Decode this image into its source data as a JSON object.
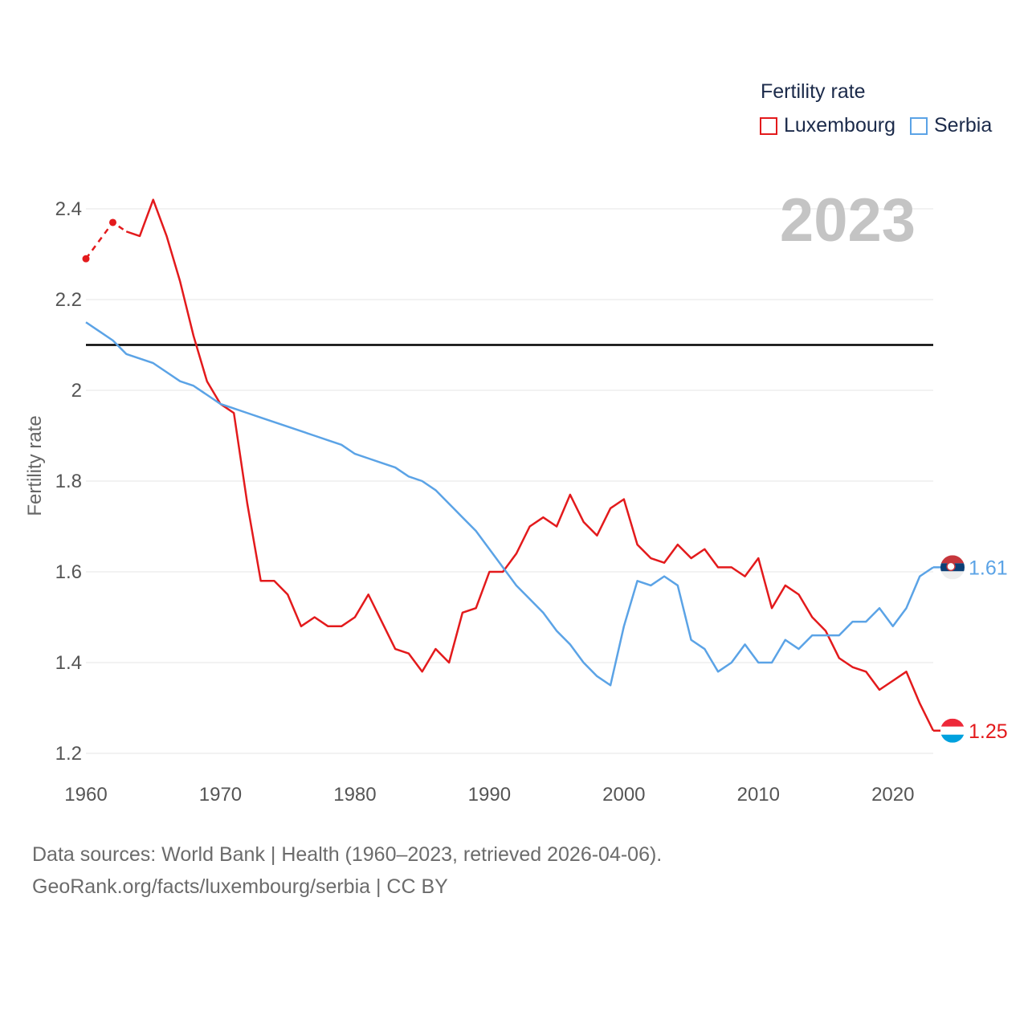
{
  "chart_data": {
    "type": "line",
    "legend_title": "Fertility rate",
    "ylabel": "Fertility rate",
    "xlabel": "",
    "year_label": "2023",
    "xlim": [
      1960,
      2023
    ],
    "ylim": [
      1.2,
      2.45
    ],
    "x_ticks": [
      1960,
      1970,
      1980,
      1990,
      2000,
      2010,
      2020
    ],
    "y_ticks": [
      1.2,
      1.4,
      1.6,
      1.8,
      2,
      2.2,
      2.4
    ],
    "y_tick_labels": [
      "1.2",
      "1.4",
      "1.6",
      "1.8",
      "2",
      "2.2",
      "2.4"
    ],
    "reference_line": 2.1,
    "x": [
      1960,
      1961,
      1962,
      1963,
      1964,
      1965,
      1966,
      1967,
      1968,
      1969,
      1970,
      1971,
      1972,
      1973,
      1974,
      1975,
      1976,
      1977,
      1978,
      1979,
      1980,
      1981,
      1982,
      1983,
      1984,
      1985,
      1986,
      1987,
      1988,
      1989,
      1990,
      1991,
      1992,
      1993,
      1994,
      1995,
      1996,
      1997,
      1998,
      1999,
      2000,
      2001,
      2002,
      2003,
      2004,
      2005,
      2006,
      2007,
      2008,
      2009,
      2010,
      2011,
      2012,
      2013,
      2014,
      2015,
      2016,
      2017,
      2018,
      2019,
      2020,
      2021,
      2022,
      2023
    ],
    "series": [
      {
        "name": "Luxembourg",
        "color": "#e31a1c",
        "end_label": "1.25",
        "dashed_until_index": 3,
        "values": [
          2.29,
          null,
          2.37,
          2.35,
          2.34,
          2.42,
          2.34,
          2.24,
          2.12,
          2.02,
          1.97,
          1.95,
          1.75,
          1.58,
          1.58,
          1.55,
          1.48,
          1.5,
          1.48,
          1.48,
          1.5,
          1.55,
          1.49,
          1.43,
          1.42,
          1.38,
          1.43,
          1.4,
          1.51,
          1.52,
          1.6,
          1.6,
          1.64,
          1.7,
          1.72,
          1.7,
          1.77,
          1.71,
          1.68,
          1.74,
          1.76,
          1.66,
          1.63,
          1.62,
          1.66,
          1.63,
          1.65,
          1.61,
          1.61,
          1.59,
          1.63,
          1.52,
          1.57,
          1.55,
          1.5,
          1.47,
          1.41,
          1.39,
          1.38,
          1.34,
          1.36,
          1.38,
          1.31,
          1.25
        ]
      },
      {
        "name": "Serbia",
        "color": "#5ba3e6",
        "end_label": "1.61",
        "values": [
          2.15,
          2.13,
          2.11,
          2.08,
          2.07,
          2.06,
          2.04,
          2.02,
          2.01,
          1.99,
          1.97,
          1.96,
          1.95,
          1.94,
          1.93,
          1.92,
          1.91,
          1.9,
          1.89,
          1.88,
          1.86,
          1.85,
          1.84,
          1.83,
          1.81,
          1.8,
          1.78,
          1.75,
          1.72,
          1.69,
          1.65,
          1.61,
          1.57,
          1.54,
          1.51,
          1.47,
          1.44,
          1.4,
          1.37,
          1.35,
          1.48,
          1.58,
          1.57,
          1.59,
          1.57,
          1.45,
          1.43,
          1.38,
          1.4,
          1.44,
          1.4,
          1.4,
          1.45,
          1.43,
          1.46,
          1.46,
          1.46,
          1.49,
          1.49,
          1.52,
          1.48,
          1.52,
          1.59,
          1.61
        ]
      }
    ]
  },
  "footer": {
    "sources": "Data sources: World Bank | Health (1960–2023, retrieved 2026-04-06).",
    "credit": "GeoRank.org/facts/luxembourg/serbia | CC BY"
  }
}
